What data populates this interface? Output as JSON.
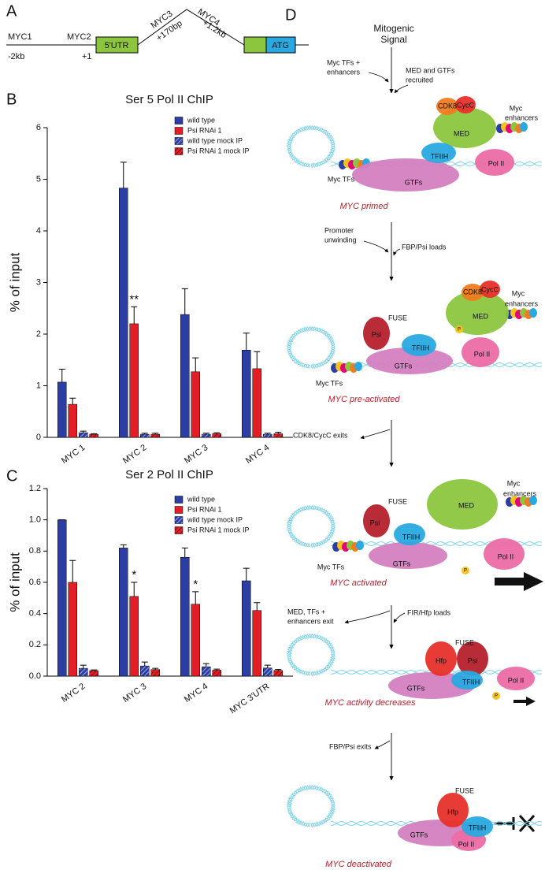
{
  "panel_labels": [
    "A",
    "B",
    "C",
    "D"
  ],
  "panel_a": {
    "sites": [
      {
        "name": "MYC1",
        "position": "-2kb"
      },
      {
        "name": "MYC2",
        "position": "+1"
      },
      {
        "name": "MYC3",
        "position": "+170bp"
      },
      {
        "name": "MYC4",
        "position": "+1.2kb"
      }
    ],
    "boxes": [
      "5'UTR",
      "ATG"
    ]
  },
  "chart_data": [
    {
      "type": "bar",
      "title": "Ser 5 Pol II ChIP",
      "ylabel": "% of input",
      "categories": [
        "MYC 1",
        "MYC 2",
        "MYC 3",
        "MYC 4"
      ],
      "ylim": [
        0,
        6
      ],
      "yticks": [
        0,
        1,
        2,
        3,
        4,
        5,
        6
      ],
      "legend": "upper right",
      "series": [
        {
          "name": "wild type",
          "color": "#2c3ea3",
          "values": [
            1.07,
            4.83,
            2.38,
            1.69
          ],
          "errors": [
            0.25,
            0.5,
            0.5,
            0.33
          ]
        },
        {
          "name": "Psi RNAi 1",
          "color": "#e41e26",
          "values": [
            0.64,
            2.2,
            1.27,
            1.33
          ],
          "errors": [
            0.12,
            0.33,
            0.27,
            0.33
          ],
          "significance": [
            null,
            "**",
            null,
            null
          ]
        },
        {
          "name": "wild type mock IP",
          "color": "#2c3ea3",
          "hatch": true,
          "values": [
            0.09,
            0.06,
            0.06,
            0.06
          ],
          "errors": [
            0.03,
            0.02,
            0.02,
            0.02
          ]
        },
        {
          "name": "Psi RNAi 1 mock IP",
          "color": "#e41e26",
          "hatch": true,
          "values": [
            0.06,
            0.06,
            0.07,
            0.07
          ],
          "errors": [
            0.01,
            0.02,
            0.02,
            0.03
          ]
        }
      ]
    },
    {
      "type": "bar",
      "title": "Ser 2 Pol II ChIP",
      "ylabel": "% of input",
      "categories": [
        "MYC 2",
        "MYC 3",
        "MYC 4",
        "MYC 3'UTR"
      ],
      "ylim": [
        0,
        1.2
      ],
      "yticks": [
        {
          "value": 0,
          "label": "0.0"
        },
        0.2,
        0.4,
        0.6,
        0.8,
        {
          "value": 1,
          "label": "1.0"
        },
        1.2
      ],
      "legend": "upper right",
      "series": [
        {
          "name": "wild type",
          "color": "#2c3ea3",
          "values": [
            1.0,
            0.82,
            0.76,
            0.61
          ],
          "errors": [
            0,
            0.02,
            0.06,
            0.08
          ]
        },
        {
          "name": "Psi RNAi 1",
          "color": "#e41e26",
          "values": [
            0.6,
            0.51,
            0.46,
            0.42
          ],
          "errors": [
            0.14,
            0.09,
            0.08,
            0.05
          ],
          "significance": [
            null,
            "*",
            "*",
            null
          ]
        },
        {
          "name": "wild type mock IP",
          "color": "#2c3ea3",
          "hatch": true,
          "values": [
            0.05,
            0.065,
            0.06,
            0.052
          ],
          "errors": [
            0.02,
            0.025,
            0.02,
            0.018
          ]
        },
        {
          "name": "Psi RNAi 1 mock IP",
          "color": "#e41e26",
          "hatch": true,
          "values": [
            0.035,
            0.042,
            0.038,
            0.036
          ],
          "errors": [
            0.005,
            0.008,
            0.007,
            0.006
          ]
        }
      ]
    }
  ],
  "panel_d": {
    "signal": [
      "Mitogenic",
      "Signal"
    ],
    "steps": [
      {
        "notes": [
          [
            "Myc TFs +",
            "enhancers"
          ],
          [
            "MED and GTFs",
            "recruited"
          ]
        ]
      },
      {
        "notes": [
          [
            "Promoter",
            "unwinding"
          ],
          [
            "FBP/Psi loads"
          ]
        ]
      },
      {
        "notes": [
          [
            "CDK8/CycC exits"
          ]
        ]
      },
      {
        "notes": [
          [
            "MED, TFs +",
            "enhancers exit"
          ],
          [
            "FIR/Hfp loads"
          ]
        ]
      },
      {
        "notes": [
          [
            "FBP/Psi exits"
          ]
        ]
      }
    ],
    "states": [
      {
        "labels": [
          "CDK8",
          "CycC",
          "Myc",
          "enhancers",
          "MED",
          "TFIIH",
          "Pol II",
          "Myc TFs",
          "GTFs"
        ],
        "caption": "MYC primed"
      },
      {
        "labels": [
          "CDK8",
          "CycC",
          "Myc",
          "enhancers",
          "FUSE",
          "MED",
          "Psi",
          "TFIIH",
          "Pol II",
          "Myc TFs",
          "GTFs",
          "P"
        ],
        "caption": "MYC pre-activated"
      },
      {
        "labels": [
          "Myc",
          "enhancers",
          "FUSE",
          "MED",
          "Psi",
          "TFIIH",
          "Pol II",
          "Myc TFs",
          "GTFs",
          "P"
        ],
        "caption": "MYC activated"
      },
      {
        "labels": [
          "FUSE",
          "Hfp",
          "Psi",
          "TFIIH",
          "GTFs",
          "Pol II",
          "P"
        ],
        "caption": "MYC activity decreases"
      },
      {
        "labels": [
          "FUSE",
          "Hfp",
          "TFIIH",
          "GTFs",
          "Pol II"
        ],
        "caption": "MYC deactivated"
      }
    ]
  }
}
